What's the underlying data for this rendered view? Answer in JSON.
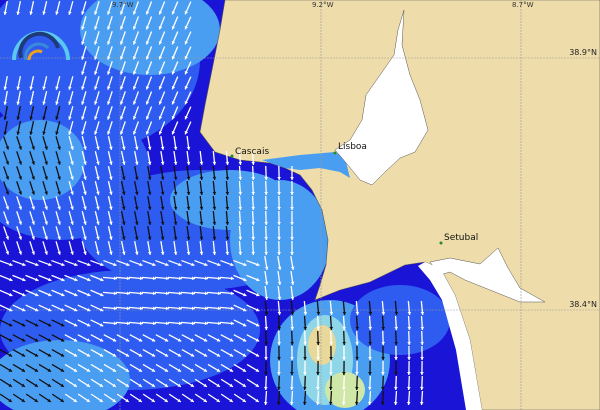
{
  "map": {
    "places": [
      {
        "name": "Cascais"
      },
      {
        "name": "Lisboa"
      },
      {
        "name": "Setubal"
      }
    ],
    "longitude_labels": [
      "9.7°W",
      "9.2°W",
      "8.7°W"
    ],
    "latitude_labels": [
      "38.9°N",
      "38.4°N"
    ],
    "colors": {
      "land": "#eedcaa",
      "ocean_dark": "#1a14d6",
      "ocean_mid": "#2e5cf0",
      "ocean_light": "#4a9ef2",
      "ocean_peak": "#cfe8a8",
      "no_data": "#ffffff",
      "arrow_light": "#ffffff",
      "arrow_dark": "#111111"
    },
    "logo_icon": "wave-arcs-logo"
  }
}
